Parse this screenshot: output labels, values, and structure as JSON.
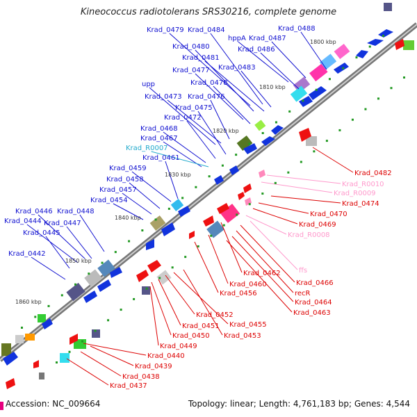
{
  "title": "Kineococcus radiotolerans SRS30216, complete genome",
  "footer": {
    "accession": "Accession: NC_009664",
    "stats": "Topology: linear; Length: 4,761,183 bp; Genes: 4,544"
  },
  "colors": {
    "forward_label": "#1010d0",
    "reverse_label": "#dd0000",
    "rna_forward": "#22aacc",
    "rna_reverse": "#ff99cc",
    "backbone": "#777777",
    "tick": "#229922"
  },
  "kbp_ticks": [
    "1800 kbp",
    "1810 kbp",
    "1820 kbp",
    "1830 kbp",
    "1840 kbp",
    "1850 kbp",
    "1860 kbp"
  ],
  "forward_labels": [
    "Krad_0488",
    "Krad_0479",
    "Krad_0484",
    "hppA",
    "Krad_0487",
    "Krad_0480",
    "Krad_0486",
    "Krad_0481",
    "Krad_0483",
    "Krad_0477",
    "Krad_0478",
    "upp",
    "Krad_0473",
    "Krad_0476",
    "Krad_0475",
    "Krad_0472",
    "Krad_0468",
    "Krad_0467",
    "Krad_R0007",
    "Krad_0461",
    "Krad_0459",
    "Krad_0458",
    "Krad_0457",
    "Krad_0454",
    "Krad_0446",
    "Krad_0448",
    "Krad_0444",
    "Krad_0447",
    "Krad_0445",
    "Krad_0442"
  ],
  "reverse_labels": [
    "Krad_0482",
    "Krad_R0010",
    "Krad_R0009",
    "Krad_0474",
    "Krad_0470",
    "Krad_0469",
    "Krad_R0008",
    "ffs",
    "Krad_0462",
    "Krad_0466",
    "Krad_0460",
    "recR",
    "Krad_0456",
    "Krad_0464",
    "Krad_0463",
    "Krad_0452",
    "Krad_0455",
    "Krad_0451",
    "Krad_0450",
    "Krad_0453",
    "Krad_0449",
    "Krad_0440",
    "Krad_0439",
    "Krad_0438",
    "Krad_0437"
  ]
}
